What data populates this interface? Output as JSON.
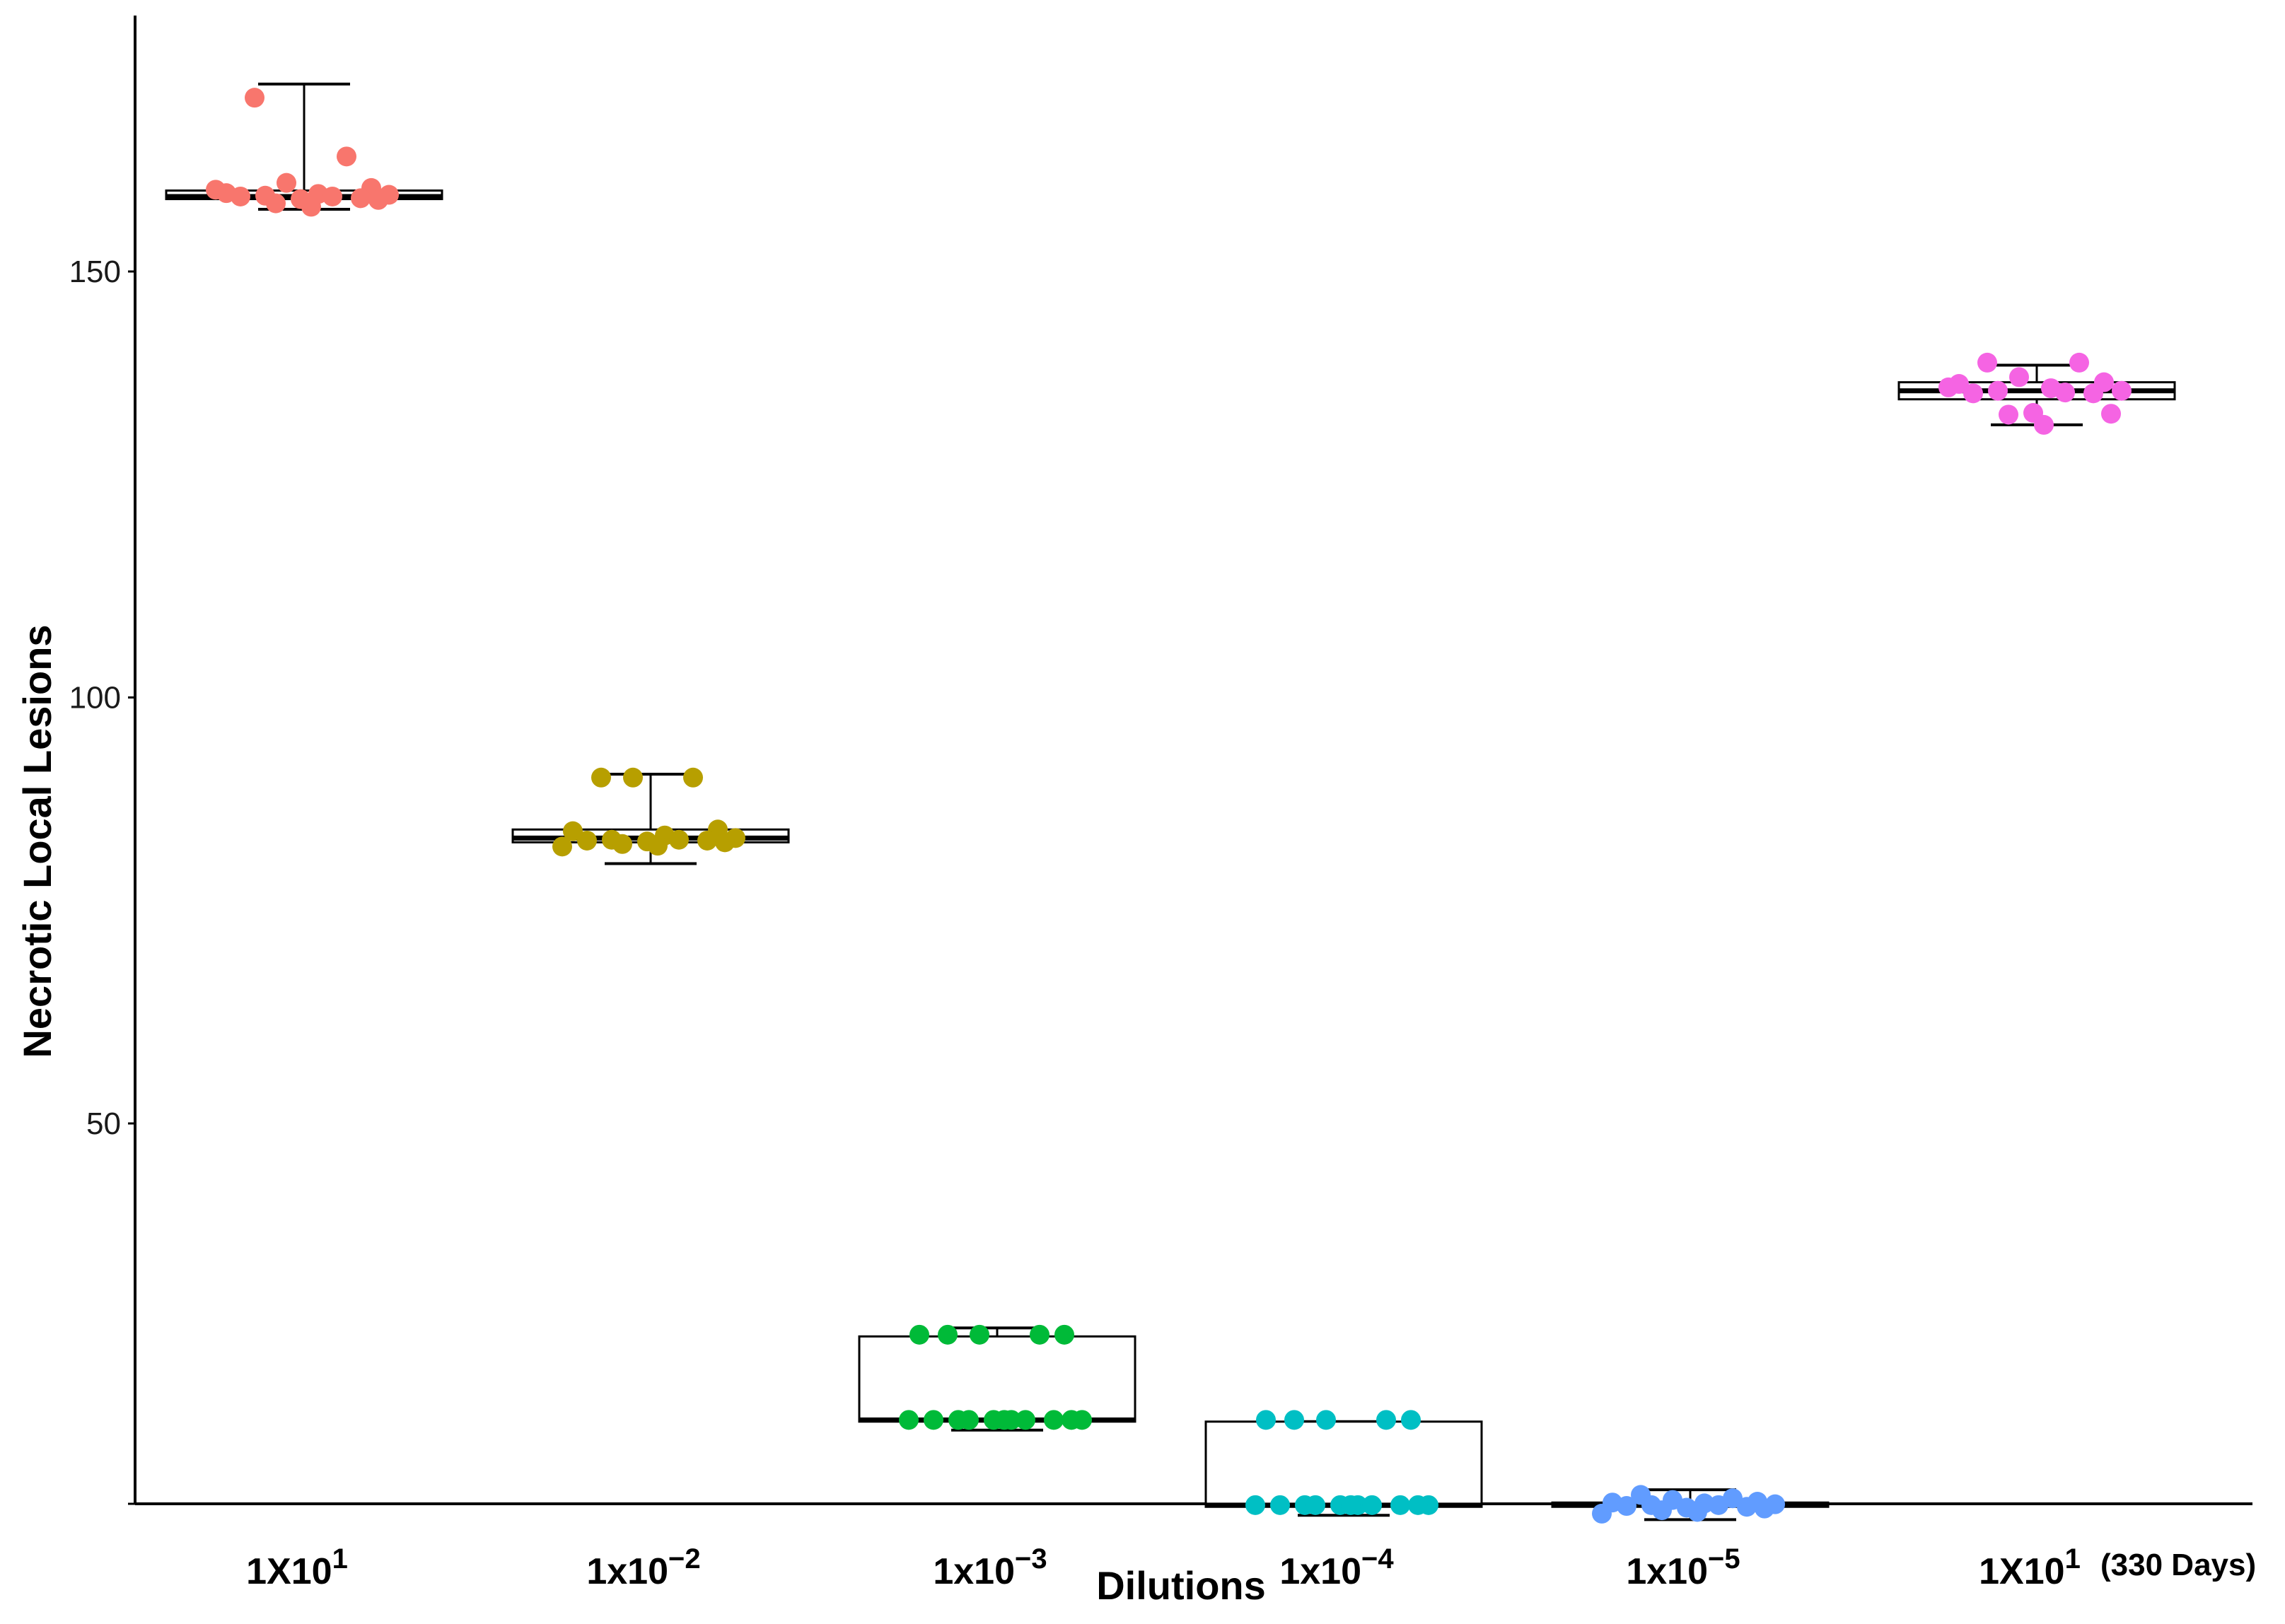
{
  "chart_data": {
    "type": "box",
    "xlabel": "Dilutions",
    "ylabel": "Necrotic Local Lesions",
    "ylim": [
      1,
      176
    ],
    "yticks": [
      50,
      100,
      150
    ],
    "legend": "none",
    "grid": false,
    "categories": [
      {
        "base": "1X10",
        "exp": "1",
        "note": "",
        "color": "#F8766D",
        "box": {
          "q1": 158.5,
          "median": 158.8,
          "q3": 159.5,
          "whisker_low": 157.3,
          "whisker_high": 172
        },
        "points": [
          170.4,
          163.5,
          160.4,
          159.8,
          159.2,
          159.1,
          159.0,
          158.9,
          158.8,
          158.8,
          158.6,
          158.5,
          158.4,
          158.0,
          157.6,
          159.6
        ]
      },
      {
        "base": "1x10",
        "exp": "−2",
        "note": "",
        "color": "#B79F00",
        "box": {
          "q1": 83.0,
          "median": 83.5,
          "q3": 84.5,
          "whisker_low": 80.5,
          "whisker_high": 91.0
        },
        "points": [
          90.6,
          90.6,
          90.6,
          84.5,
          84.3,
          83.8,
          83.5,
          83.3,
          83.3,
          83.2,
          83.2,
          83.1,
          83.0,
          82.8,
          82.6,
          82.5
        ]
      },
      {
        "base": "1x10",
        "exp": "−3",
        "note": "",
        "color": "#00BA38",
        "box": {
          "q1": 15.0,
          "median": 15.2,
          "q3": 25.0,
          "whisker_low": 14.0,
          "whisker_high": 26.0
        },
        "points": [
          25.2,
          25.2,
          25.2,
          25.2,
          25.2,
          15.2,
          15.2,
          15.2,
          15.2,
          15.2,
          15.2,
          15.2,
          15.2,
          15.2,
          15.2,
          15.2
        ]
      },
      {
        "base": "1x10",
        "exp": "−4",
        "note": "",
        "color": "#00BFC4",
        "box": {
          "q1": 5.0,
          "median": 5.2,
          "q3": 15.0,
          "whisker_low": 4.0,
          "whisker_high": 15.0
        },
        "points": [
          15.2,
          15.2,
          15.2,
          15.2,
          15.2,
          5.2,
          5.2,
          5.2,
          5.2,
          5.2,
          5.2,
          5.2,
          5.2,
          5.2,
          5.2,
          5.2
        ]
      },
      {
        "base": "1x10",
        "exp": "−5",
        "note": "",
        "color": "#619CFF",
        "box": {
          "q1": 5.0,
          "median": 5.2,
          "q3": 5.5,
          "whisker_low": 3.5,
          "whisker_high": 7.0
        },
        "points": [
          6.4,
          6.0,
          5.8,
          5.6,
          5.5,
          5.4,
          5.3,
          5.2,
          5.2,
          5.1,
          5.0,
          4.9,
          4.8,
          4.6,
          4.4,
          4.2
        ]
      },
      {
        "base": "1X10",
        "exp": "1",
        "note": "(330 Days)",
        "color": "#F564E3",
        "box": {
          "q1": 135.0,
          "median": 136.0,
          "q3": 137.0,
          "whisker_low": 132.0,
          "whisker_high": 139.0
        },
        "points": [
          139.3,
          139.3,
          137.6,
          137.0,
          136.8,
          136.3,
          136.0,
          136.0,
          135.8,
          135.7,
          135.7,
          133.4,
          133.3,
          133.2,
          132.0,
          136.4
        ]
      }
    ]
  }
}
